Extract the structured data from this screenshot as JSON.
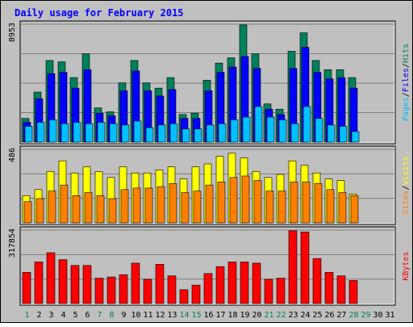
{
  "colors": {
    "background": "#C0C0C0",
    "panel": "#C0C0C0",
    "grid": "#808080",
    "hits": "#00805C",
    "files": "#0000FF",
    "pages": "#00C0FF",
    "visits": "#FFFF00",
    "sites": "#FF8000",
    "kbytes": "#FF0000",
    "title": "#0000FF",
    "weekend_label": "#00805C",
    "weekday_label": "#000000"
  },
  "chart_data": [
    {
      "type": "bar",
      "title": "Daily usage for February 2015",
      "panel": "hits-files-pages",
      "ylabel_parts": [
        {
          "text": "Pages",
          "color": "pages"
        },
        {
          "text": "/",
          "color": "weekday_label"
        },
        {
          "text": "Files",
          "color": "files"
        },
        {
          "text": "/",
          "color": "weekday_label"
        },
        {
          "text": "Hits",
          "color": "hits"
        }
      ],
      "ymax_label": "8953",
      "ylim": [
        0,
        8953
      ],
      "categories": [
        "1",
        "2",
        "3",
        "4",
        "5",
        "6",
        "7",
        "8",
        "9",
        "10",
        "11",
        "12",
        "13",
        "14",
        "15",
        "16",
        "17",
        "18",
        "19",
        "20",
        "21",
        "22",
        "23",
        "24",
        "25",
        "26",
        "27",
        "28",
        "29",
        "30",
        "31"
      ],
      "series": [
        {
          "name": "Hits",
          "color": "hits",
          "values": [
            1800,
            3800,
            6200,
            6100,
            4900,
            6700,
            2600,
            2300,
            4500,
            6200,
            4500,
            4100,
            4900,
            2100,
            2200,
            4700,
            6000,
            6400,
            8900,
            6700,
            2900,
            2500,
            6900,
            8300,
            6200,
            5500,
            5500,
            4900,
            null,
            null,
            null
          ]
        },
        {
          "name": "Files",
          "color": "files",
          "values": [
            1500,
            3300,
            5200,
            5300,
            4100,
            5500,
            2200,
            2000,
            3900,
            5400,
            3900,
            3500,
            4000,
            1800,
            1800,
            3900,
            5300,
            5700,
            6500,
            5600,
            2500,
            2100,
            5600,
            7200,
            5300,
            4800,
            4900,
            4100,
            null,
            null,
            null
          ]
        },
        {
          "name": "Pages",
          "color": "pages",
          "values": [
            1200,
            1500,
            1700,
            1400,
            1500,
            1400,
            1500,
            1400,
            1300,
            1600,
            1100,
            1300,
            1400,
            1000,
            1000,
            1300,
            1400,
            1700,
            1900,
            2700,
            1900,
            1700,
            1400,
            2700,
            1800,
            1300,
            1200,
            800,
            null,
            null,
            null
          ]
        }
      ]
    },
    {
      "type": "bar",
      "panel": "visits-sites",
      "ylabel_parts": [
        {
          "text": "Sites",
          "color": "sites"
        },
        {
          "text": "/",
          "color": "weekday_label"
        },
        {
          "text": "Visits",
          "color": "visits"
        }
      ],
      "ymax_label": "486",
      "ylim": [
        0,
        486
      ],
      "categories": [
        "1",
        "2",
        "3",
        "4",
        "5",
        "6",
        "7",
        "8",
        "9",
        "10",
        "11",
        "12",
        "13",
        "14",
        "15",
        "16",
        "17",
        "18",
        "19",
        "20",
        "21",
        "22",
        "23",
        "24",
        "25",
        "26",
        "27",
        "28",
        "29",
        "30",
        "31"
      ],
      "series": [
        {
          "name": "Visits",
          "color": "visits",
          "values": [
            180,
            220,
            340,
            410,
            330,
            370,
            340,
            300,
            370,
            330,
            330,
            350,
            370,
            290,
            370,
            390,
            440,
            460,
            430,
            340,
            300,
            320,
            410,
            380,
            330,
            290,
            280,
            190,
            null,
            null,
            null
          ]
        },
        {
          "name": "Sites",
          "color": "sites",
          "values": [
            140,
            160,
            210,
            250,
            180,
            200,
            180,
            160,
            220,
            230,
            230,
            240,
            260,
            200,
            210,
            250,
            270,
            300,
            310,
            280,
            210,
            210,
            270,
            270,
            260,
            220,
            200,
            180,
            null,
            null,
            null
          ]
        }
      ]
    },
    {
      "type": "bar",
      "panel": "kbytes",
      "ylabel_parts": [
        {
          "text": "KBytes",
          "color": "kbytes"
        }
      ],
      "ymax_label": "317854",
      "ylim": [
        0,
        317854
      ],
      "categories": [
        "1",
        "2",
        "3",
        "4",
        "5",
        "6",
        "7",
        "8",
        "9",
        "10",
        "11",
        "12",
        "13",
        "14",
        "15",
        "16",
        "17",
        "18",
        "19",
        "20",
        "21",
        "22",
        "23",
        "24",
        "25",
        "26",
        "27",
        "28",
        "29",
        "30",
        "31"
      ],
      "series": [
        {
          "name": "KBytes",
          "color": "kbytes",
          "values": [
            135000,
            180000,
            220000,
            190000,
            165000,
            165000,
            110000,
            115000,
            125000,
            175000,
            105000,
            170000,
            120000,
            60000,
            80000,
            130000,
            160000,
            180000,
            180000,
            175000,
            105000,
            110000,
            315000,
            310000,
            195000,
            135000,
            120000,
            100000,
            null,
            null,
            null
          ]
        }
      ]
    }
  ],
  "x_labels": [
    {
      "text": "1",
      "weekend": true
    },
    {
      "text": "2",
      "weekend": false
    },
    {
      "text": "3",
      "weekend": false
    },
    {
      "text": "4",
      "weekend": false
    },
    {
      "text": "5",
      "weekend": false
    },
    {
      "text": "6",
      "weekend": false
    },
    {
      "text": "7",
      "weekend": true
    },
    {
      "text": "8",
      "weekend": true
    },
    {
      "text": "9",
      "weekend": false
    },
    {
      "text": "10",
      "weekend": false
    },
    {
      "text": "11",
      "weekend": false
    },
    {
      "text": "12",
      "weekend": false
    },
    {
      "text": "13",
      "weekend": false
    },
    {
      "text": "14",
      "weekend": true
    },
    {
      "text": "15",
      "weekend": true
    },
    {
      "text": "16",
      "weekend": false
    },
    {
      "text": "17",
      "weekend": false
    },
    {
      "text": "18",
      "weekend": false
    },
    {
      "text": "19",
      "weekend": false
    },
    {
      "text": "20",
      "weekend": false
    },
    {
      "text": "21",
      "weekend": true
    },
    {
      "text": "22",
      "weekend": true
    },
    {
      "text": "23",
      "weekend": false
    },
    {
      "text": "24",
      "weekend": false
    },
    {
      "text": "25",
      "weekend": false
    },
    {
      "text": "26",
      "weekend": false
    },
    {
      "text": "27",
      "weekend": false
    },
    {
      "text": "28",
      "weekend": true
    },
    {
      "text": "29",
      "weekend": true
    },
    {
      "text": "30",
      "weekend": false
    },
    {
      "text": "31",
      "weekend": false
    }
  ]
}
